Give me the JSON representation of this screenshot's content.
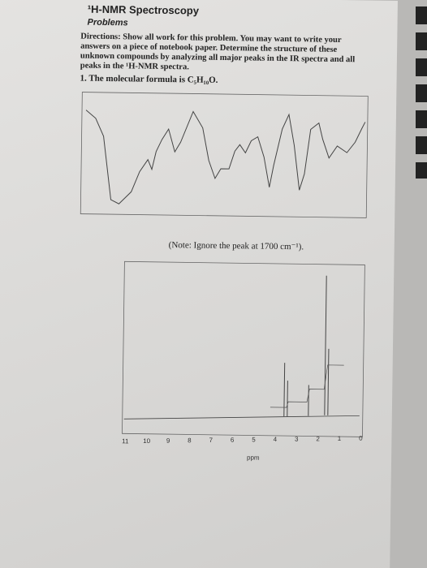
{
  "header": {
    "title": "¹H-NMR Spectroscopy",
    "subtitle": "Problems"
  },
  "directions": {
    "label": "Directions:",
    "text": "Show all work for this problem. You may want to write your answers on a piece of notebook paper. Determine the structure of these unknown compounds by analyzing all major peaks in the IR spectra and all peaks in the ¹H-NMR spectra."
  },
  "question": "1. The molecular formula is C₅H₁₀O.",
  "ir_note": "(Note: Ignore the peak at 1700 cm⁻¹).",
  "nmr_axis": {
    "ticks": [
      11,
      10,
      9,
      8,
      7,
      6,
      5,
      4,
      3,
      2,
      1,
      0
    ],
    "label": "ppm"
  }
}
